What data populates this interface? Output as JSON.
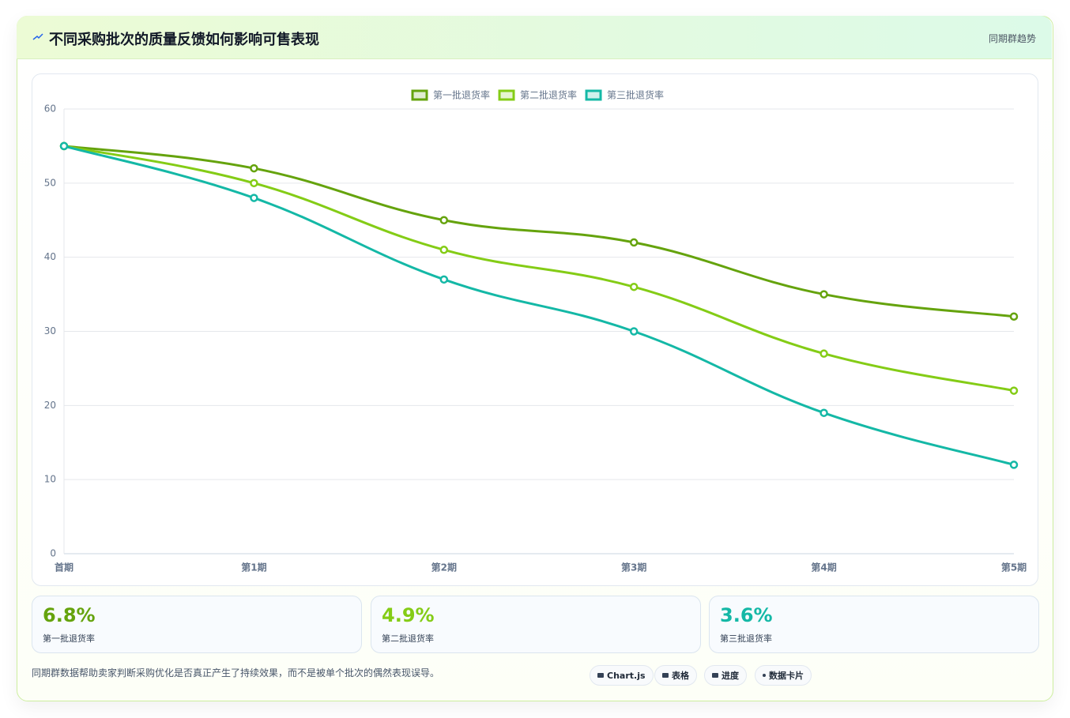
{
  "header": {
    "title": "不同采购批次的质量反馈如何影响可售表现",
    "badge": "同期群趋势"
  },
  "chart_data": {
    "type": "line",
    "categories": [
      "首期",
      "第1期",
      "第2期",
      "第3期",
      "第4期",
      "第5期"
    ],
    "series": [
      {
        "name": "第一批退货率",
        "color": "#65a30d",
        "values": [
          55,
          52,
          45,
          42,
          35,
          32
        ]
      },
      {
        "name": "第二批退货率",
        "color": "#84cc16",
        "values": [
          55,
          50,
          41,
          36,
          27,
          22
        ]
      },
      {
        "name": "第三批退货率",
        "color": "#14b8a6",
        "values": [
          55,
          48,
          37,
          30,
          19,
          12
        ]
      }
    ],
    "ylim": [
      0,
      60
    ],
    "yticks": [
      0,
      10,
      20,
      30,
      40,
      50,
      60
    ],
    "grid": true,
    "legend": "top"
  },
  "stats": [
    {
      "value": "6.8%",
      "label": "第一批退货率",
      "color": "#65a30d"
    },
    {
      "value": "4.9%",
      "label": "第二批退货率",
      "color": "#84cc16"
    },
    {
      "value": "3.6%",
      "label": "第三批退货率",
      "color": "#14b8a6"
    }
  ],
  "footer": {
    "note": "同期群数据帮助卖家判断采购优化是否真正产生了持续效果，而不是被单个批次的偶然表现误导。",
    "buttons": [
      "Chart.js",
      "表格",
      "进度",
      "数据卡片"
    ]
  }
}
